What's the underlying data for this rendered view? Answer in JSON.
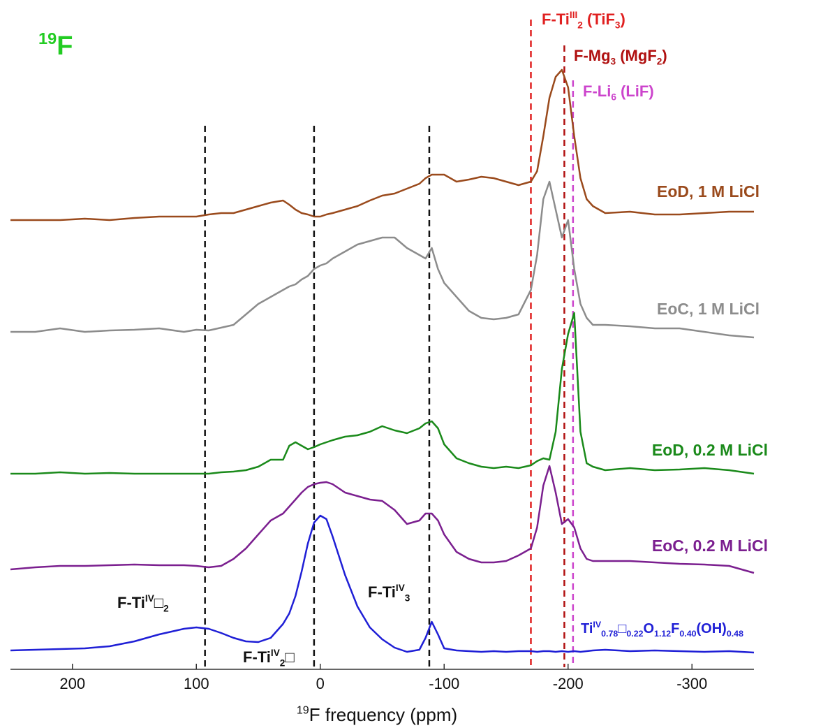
{
  "chart_data": {
    "type": "line",
    "title": [
      {
        "sup": "19"
      },
      {
        "t": "F"
      }
    ],
    "title_color": "#22cc22",
    "x_label": [
      {
        "sup": "19"
      },
      {
        "t": "F frequency (ppm)"
      }
    ],
    "xlim": [
      250,
      -350
    ],
    "xticks": [
      200,
      100,
      0,
      -100,
      -200,
      -300
    ],
    "x": [
      250,
      230,
      210,
      190,
      170,
      150,
      130,
      110,
      100,
      90,
      80,
      70,
      60,
      50,
      40,
      30,
      25,
      20,
      15,
      10,
      5,
      0,
      -5,
      -10,
      -20,
      -30,
      -40,
      -50,
      -60,
      -70,
      -80,
      -85,
      -90,
      -95,
      -100,
      -110,
      -120,
      -130,
      -140,
      -150,
      -160,
      -170,
      -175,
      -180,
      -185,
      -190,
      -195,
      -200,
      -205,
      -210,
      -215,
      -220,
      -230,
      -250,
      -270,
      -290,
      -310,
      -330,
      -350
    ],
    "series": [
      {
        "name": "EoD, 1 M LiCl",
        "color": "#9a4a1c",
        "values": [
          0,
          0,
          0,
          2,
          0,
          3,
          5,
          5,
          5,
          8,
          10,
          10,
          15,
          20,
          25,
          28,
          22,
          15,
          10,
          8,
          5,
          5,
          8,
          10,
          15,
          20,
          28,
          35,
          38,
          45,
          52,
          60,
          65,
          65,
          65,
          55,
          58,
          62,
          60,
          55,
          50,
          55,
          70,
          120,
          175,
          205,
          215,
          190,
          120,
          60,
          30,
          20,
          10,
          12,
          8,
          8,
          10,
          12,
          12
        ]
      },
      {
        "name": "EoC, 1 M LiCl",
        "color": "#8c8c8c",
        "values": [
          0,
          0,
          5,
          0,
          2,
          3,
          5,
          0,
          3,
          2,
          6,
          10,
          25,
          40,
          50,
          60,
          65,
          68,
          75,
          80,
          90,
          95,
          98,
          105,
          115,
          125,
          130,
          135,
          135,
          120,
          110,
          105,
          120,
          90,
          70,
          50,
          30,
          20,
          18,
          20,
          25,
          60,
          110,
          190,
          215,
          175,
          135,
          160,
          90,
          40,
          20,
          10,
          10,
          8,
          5,
          5,
          0,
          -5,
          -8
        ]
      },
      {
        "name": "EoD, 0.2 M LiCl",
        "color": "#1a8a1a",
        "values": [
          0,
          0,
          2,
          0,
          1,
          0,
          0,
          0,
          0,
          0,
          2,
          3,
          5,
          10,
          20,
          20,
          40,
          45,
          40,
          35,
          38,
          42,
          45,
          48,
          53,
          55,
          60,
          68,
          62,
          58,
          65,
          72,
          75,
          65,
          42,
          22,
          15,
          10,
          8,
          10,
          8,
          12,
          18,
          22,
          20,
          60,
          150,
          200,
          230,
          60,
          15,
          10,
          5,
          8,
          5,
          6,
          8,
          5,
          0
        ]
      },
      {
        "name": "EoC, 0.2 M LiCl",
        "color": "#7b1f8f",
        "values": [
          0,
          3,
          5,
          5,
          6,
          7,
          6,
          6,
          5,
          3,
          5,
          15,
          30,
          50,
          70,
          80,
          90,
          100,
          110,
          118,
          122,
          124,
          125,
          122,
          110,
          105,
          100,
          98,
          85,
          65,
          70,
          80,
          80,
          70,
          50,
          25,
          15,
          10,
          10,
          12,
          20,
          30,
          60,
          120,
          148,
          110,
          65,
          72,
          60,
          30,
          15,
          12,
          12,
          12,
          10,
          8,
          7,
          5,
          -5
        ]
      },
      {
        "name": [
          {
            "t": "Ti"
          },
          {
            "sup": "IV"
          },
          {
            "sub": "0.78"
          },
          {
            "t": "□"
          },
          {
            "sub": "0.22"
          },
          {
            "t": "O"
          },
          {
            "sub": "1.12"
          },
          {
            "t": "F"
          },
          {
            "sub": "0.40"
          },
          {
            "t": "(OH)"
          },
          {
            "sub": "0.48"
          }
        ],
        "color": "#1f1fd6",
        "values": [
          2,
          3,
          4,
          5,
          8,
          15,
          25,
          33,
          35,
          33,
          27,
          20,
          15,
          14,
          20,
          40,
          55,
          80,
          115,
          155,
          185,
          195,
          190,
          165,
          110,
          65,
          35,
          18,
          6,
          0,
          3,
          20,
          43,
          25,
          5,
          2,
          1,
          0,
          1,
          0,
          1,
          1,
          0,
          1,
          1,
          0,
          1,
          0,
          1,
          0,
          1,
          2,
          3,
          1,
          2,
          1,
          0,
          1,
          -1
        ]
      }
    ],
    "reference_lines": [
      {
        "x": 93,
        "color": "#111111",
        "label": [
          {
            "t": "F-Ti"
          },
          {
            "sup": "IV"
          },
          {
            "t": "□"
          },
          {
            "sub": "2"
          }
        ]
      },
      {
        "x": 5,
        "color": "#111111",
        "label": [
          {
            "t": "F-Ti"
          },
          {
            "sup": "IV"
          },
          {
            "sub": "2"
          },
          {
            "t": "□"
          }
        ]
      },
      {
        "x": -88,
        "color": "#111111",
        "label": [
          {
            "t": "F-Ti"
          },
          {
            "sup": "IV"
          },
          {
            "sub": "3"
          }
        ]
      },
      {
        "x": -170,
        "color": "#e02020",
        "label": [
          {
            "t": "F-Ti"
          },
          {
            "sup": "III"
          },
          {
            "sub": "2"
          },
          {
            "t": " (TiF"
          },
          {
            "sub": "3"
          },
          {
            "t": ")"
          }
        ]
      },
      {
        "x": -197,
        "color": "#b01010",
        "label": [
          {
            "t": "F-Mg"
          },
          {
            "sub": "3"
          },
          {
            "t": " (MgF"
          },
          {
            "sub": "2"
          },
          {
            "t": ")"
          }
        ]
      },
      {
        "x": -204,
        "color": "#cc44cc",
        "label": [
          {
            "t": "F-Li"
          },
          {
            "sub": "6"
          },
          {
            "t": " (LiF)"
          }
        ]
      }
    ]
  }
}
